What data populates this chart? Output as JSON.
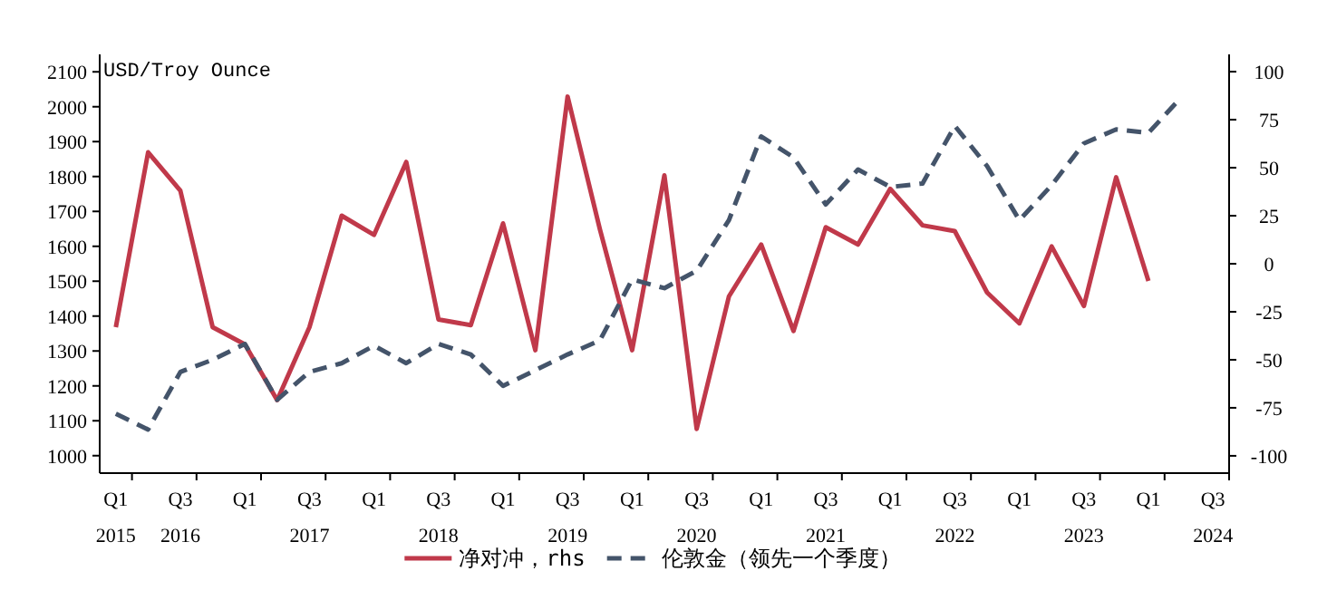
{
  "chart_data": {
    "type": "line",
    "ylabel": "USD/Troy Ounce",
    "categories": [
      "Q1\n2015",
      null,
      "Q3\n2016",
      null,
      "Q1",
      null,
      "Q3\n2017",
      null,
      "Q1",
      null,
      "Q3\n2018",
      null,
      "Q1",
      null,
      "Q3\n2019",
      null,
      "Q1",
      null,
      "Q3\n2020",
      null,
      "Q1",
      null,
      "Q3\n2021",
      null,
      "Q1",
      null,
      "Q3\n2022",
      null,
      "Q1",
      null,
      "Q3\n2023",
      null,
      "Q1",
      null,
      "Q3\n2024"
    ],
    "ylim": [
      950,
      2150
    ],
    "yticks": [
      1000,
      1100,
      1200,
      1300,
      1400,
      1500,
      1600,
      1700,
      1800,
      1900,
      2000,
      2100
    ],
    "y2lim": [
      -109,
      109
    ],
    "y2ticks": [
      -100,
      -75,
      -50,
      -25,
      0,
      25,
      50,
      75,
      100
    ],
    "grid": false,
    "legend": "bottom",
    "series": [
      {
        "name": "净对冲，rhs",
        "color": "#c0394a",
        "axis": "y2",
        "line_style": "solid",
        "values": [
          -33,
          58,
          38,
          -33,
          -42,
          -71,
          -33,
          25,
          15,
          53,
          -29,
          -32,
          21,
          -45,
          87,
          18,
          -45,
          46,
          -86,
          -17,
          10,
          -35,
          19,
          10,
          39,
          20,
          17,
          -15,
          -31,
          9,
          -22,
          45,
          -9,
          null,
          null
        ]
      },
      {
        "name": "伦敦金（领先一个季度）",
        "color": "#44546a",
        "axis": "y",
        "line_style": "dashed",
        "values": [
          1120,
          1075,
          1240,
          1275,
          1320,
          1160,
          1240,
          1265,
          1315,
          1265,
          1320,
          1290,
          1200,
          1245,
          1290,
          1330,
          1505,
          1480,
          1530,
          1675,
          1915,
          1855,
          1720,
          1820,
          1770,
          1780,
          1945,
          1830,
          1675,
          1775,
          1895,
          1935,
          1925,
          2025,
          null
        ]
      }
    ]
  }
}
